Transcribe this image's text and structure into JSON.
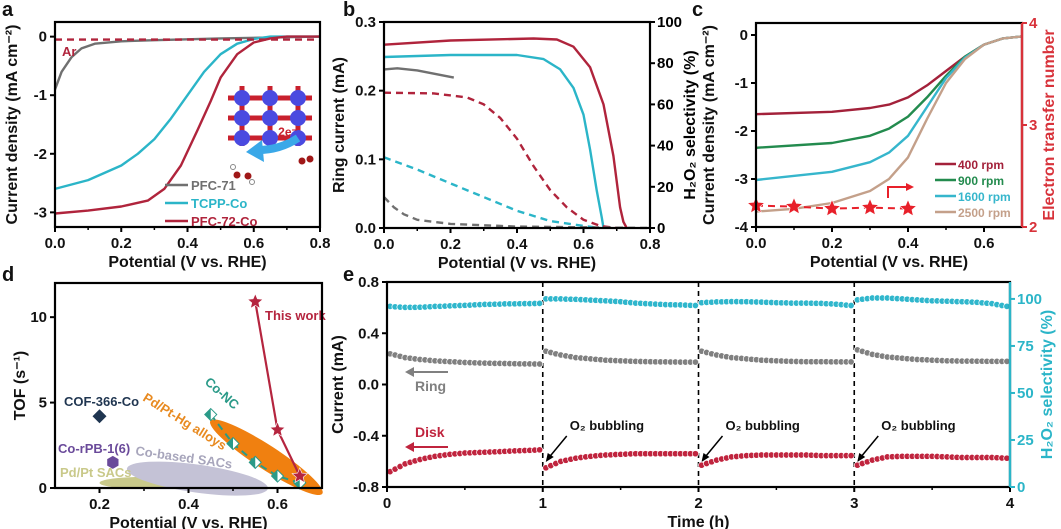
{
  "panel_letters": [
    "a",
    "b",
    "c",
    "d",
    "e"
  ],
  "chart_data": [
    {
      "panel": "a",
      "type": "line",
      "xlabel": "Potential (V vs. RHE)",
      "ylabel": "Current density (mA cm⁻²)",
      "xlim": [
        0,
        0.8
      ],
      "ylim": [
        -3.25,
        0.25
      ],
      "xticks": [
        "0.0",
        "0.2",
        "0.4",
        "0.6",
        "0.8"
      ],
      "yticks": [
        "0",
        "-1",
        "-2",
        "-3"
      ],
      "annotations": {
        "ar": "Ar",
        "inset_electrons": "2e⁻"
      },
      "series": [
        {
          "name": "PFC-71",
          "color": "#707070",
          "dash": false,
          "points": [
            [
              0,
              -0.9
            ],
            [
              0.02,
              -0.6
            ],
            [
              0.05,
              -0.35
            ],
            [
              0.08,
              -0.2
            ],
            [
              0.12,
              -0.12
            ],
            [
              0.2,
              -0.08
            ],
            [
              0.3,
              -0.06
            ],
            [
              0.5,
              -0.03
            ],
            [
              0.8,
              0
            ]
          ]
        },
        {
          "name": "TCPP-Co",
          "color": "#2bb5c8",
          "dash": false,
          "points": [
            [
              0,
              -2.6
            ],
            [
              0.1,
              -2.45
            ],
            [
              0.2,
              -2.2
            ],
            [
              0.25,
              -2.0
            ],
            [
              0.3,
              -1.75
            ],
            [
              0.35,
              -1.4
            ],
            [
              0.4,
              -1.0
            ],
            [
              0.45,
              -0.6
            ],
            [
              0.5,
              -0.3
            ],
            [
              0.55,
              -0.12
            ],
            [
              0.6,
              -0.04
            ],
            [
              0.65,
              0
            ],
            [
              0.8,
              0
            ]
          ]
        },
        {
          "name": "PFC-72-Co",
          "color": "#b0243c",
          "dash": false,
          "points": [
            [
              0,
              -3.02
            ],
            [
              0.1,
              -2.97
            ],
            [
              0.2,
              -2.9
            ],
            [
              0.28,
              -2.8
            ],
            [
              0.33,
              -2.6
            ],
            [
              0.38,
              -2.2
            ],
            [
              0.43,
              -1.6
            ],
            [
              0.47,
              -1.1
            ],
            [
              0.5,
              -0.7
            ],
            [
              0.55,
              -0.3
            ],
            [
              0.6,
              -0.1
            ],
            [
              0.65,
              -0.03
            ],
            [
              0.7,
              0
            ],
            [
              0.8,
              0
            ]
          ]
        },
        {
          "name": "Ar",
          "color": "#b0243c",
          "dash": true,
          "legend": false,
          "points": [
            [
              0,
              -0.05
            ],
            [
              0.8,
              -0.05
            ]
          ]
        }
      ]
    },
    {
      "panel": "b",
      "type": "line",
      "xlabel": "Potential (V vs. RHE)",
      "ylabel": "Ring current (mA)",
      "y2label": "H₂O₂ selectivity (%)",
      "xlim": [
        0,
        0.8
      ],
      "ylim": [
        0,
        0.3
      ],
      "y2lim": [
        0,
        100
      ],
      "xticks": [
        "0.0",
        "0.2",
        "0.4",
        "0.6",
        "0.8"
      ],
      "yticks": [
        "0.0",
        "0.1",
        "0.2",
        "0.3"
      ],
      "y2ticks": [
        "0",
        "20",
        "40",
        "60",
        "80",
        "100"
      ],
      "series": [
        {
          "color": "#b0243c",
          "axis": "right",
          "dash": false,
          "points": [
            [
              0,
              89
            ],
            [
              0.2,
              91
            ],
            [
              0.45,
              92
            ],
            [
              0.52,
              91.5
            ],
            [
              0.57,
              88
            ],
            [
              0.62,
              78
            ],
            [
              0.66,
              60
            ],
            [
              0.69,
              35
            ],
            [
              0.71,
              10
            ],
            [
              0.72,
              3
            ],
            [
              0.73,
              0
            ]
          ]
        },
        {
          "color": "#2bb5c8",
          "axis": "right",
          "dash": false,
          "points": [
            [
              0,
              83
            ],
            [
              0.2,
              84
            ],
            [
              0.4,
              84
            ],
            [
              0.48,
              82
            ],
            [
              0.53,
              77
            ],
            [
              0.57,
              68
            ],
            [
              0.6,
              55
            ],
            [
              0.62,
              38
            ],
            [
              0.64,
              18
            ],
            [
              0.655,
              5
            ],
            [
              0.66,
              0
            ]
          ]
        },
        {
          "color": "#707070",
          "axis": "right",
          "dash": false,
          "points": [
            [
              0,
              77
            ],
            [
              0.04,
              77.5
            ],
            [
              0.1,
              76.5
            ],
            [
              0.21,
              73
            ]
          ]
        },
        {
          "color": "#b0243c",
          "axis": "left",
          "dash": true,
          "points": [
            [
              0,
              0.197
            ],
            [
              0.15,
              0.196
            ],
            [
              0.25,
              0.19
            ],
            [
              0.3,
              0.18
            ],
            [
              0.35,
              0.16
            ],
            [
              0.4,
              0.13
            ],
            [
              0.45,
              0.09
            ],
            [
              0.5,
              0.055
            ],
            [
              0.55,
              0.03
            ],
            [
              0.6,
              0.012
            ],
            [
              0.65,
              0.003
            ],
            [
              0.7,
              0
            ]
          ]
        },
        {
          "color": "#2bb5c8",
          "axis": "left",
          "dash": true,
          "points": [
            [
              0,
              0.103
            ],
            [
              0.1,
              0.085
            ],
            [
              0.2,
              0.065
            ],
            [
              0.3,
              0.045
            ],
            [
              0.4,
              0.025
            ],
            [
              0.5,
              0.01
            ],
            [
              0.6,
              0.003
            ],
            [
              0.65,
              0
            ]
          ]
        },
        {
          "color": "#707070",
          "axis": "left",
          "dash": true,
          "points": [
            [
              0,
              0.045
            ],
            [
              0.03,
              0.03
            ],
            [
              0.06,
              0.02
            ],
            [
              0.1,
              0.012
            ],
            [
              0.2,
              0.006
            ],
            [
              0.4,
              0.002
            ],
            [
              0.8,
              0
            ]
          ]
        }
      ]
    },
    {
      "panel": "c",
      "type": "line",
      "xlabel": "Potential (V vs. RHE)",
      "ylabel": "Current density (mA cm⁻²)",
      "y2label": "Electron transfer number",
      "xlim": [
        0,
        0.7
      ],
      "ylim": [
        -4,
        0.25
      ],
      "y2lim": [
        2,
        4
      ],
      "xticks": [
        "0.0",
        "0.2",
        "0.4",
        "0.6"
      ],
      "yticks": [
        "0",
        "-1",
        "-2",
        "-3",
        "-4"
      ],
      "y2ticks": [
        "2",
        "3",
        "4"
      ],
      "y2color": "#d8323a",
      "series": [
        {
          "name": "400 rpm",
          "color": "#a3213a",
          "points": [
            [
              0,
              -1.65
            ],
            [
              0.2,
              -1.6
            ],
            [
              0.3,
              -1.52
            ],
            [
              0.35,
              -1.45
            ],
            [
              0.4,
              -1.3
            ],
            [
              0.45,
              -1.05
            ],
            [
              0.5,
              -0.75
            ],
            [
              0.55,
              -0.45
            ],
            [
              0.6,
              -0.2
            ],
            [
              0.65,
              -0.07
            ],
            [
              0.7,
              -0.03
            ]
          ]
        },
        {
          "name": "900 rpm",
          "color": "#238b4e",
          "points": [
            [
              0,
              -2.35
            ],
            [
              0.2,
              -2.25
            ],
            [
              0.3,
              -2.1
            ],
            [
              0.35,
              -1.95
            ],
            [
              0.4,
              -1.7
            ],
            [
              0.45,
              -1.3
            ],
            [
              0.5,
              -0.85
            ],
            [
              0.55,
              -0.45
            ],
            [
              0.6,
              -0.2
            ],
            [
              0.65,
              -0.07
            ],
            [
              0.7,
              -0.03
            ]
          ]
        },
        {
          "name": "1600 rpm",
          "color": "#36b6cc",
          "points": [
            [
              0,
              -3.02
            ],
            [
              0.2,
              -2.85
            ],
            [
              0.3,
              -2.65
            ],
            [
              0.35,
              -2.45
            ],
            [
              0.4,
              -2.1
            ],
            [
              0.45,
              -1.5
            ],
            [
              0.5,
              -0.9
            ],
            [
              0.55,
              -0.47
            ],
            [
              0.6,
              -0.2
            ],
            [
              0.65,
              -0.07
            ],
            [
              0.7,
              -0.03
            ]
          ]
        },
        {
          "name": "2500 rpm",
          "color": "#c4a08a",
          "points": [
            [
              0,
              -3.68
            ],
            [
              0.1,
              -3.62
            ],
            [
              0.2,
              -3.5
            ],
            [
              0.3,
              -3.25
            ],
            [
              0.35,
              -3.0
            ],
            [
              0.4,
              -2.55
            ],
            [
              0.45,
              -1.75
            ],
            [
              0.5,
              -1.0
            ],
            [
              0.55,
              -0.5
            ],
            [
              0.6,
              -0.2
            ],
            [
              0.65,
              -0.07
            ],
            [
              0.7,
              -0.03
            ]
          ]
        }
      ],
      "electron_transfer": {
        "color": "#e8202a",
        "points": [
          [
            0,
            2.21
          ],
          [
            0.1,
            2.2
          ],
          [
            0.2,
            2.18
          ],
          [
            0.3,
            2.19
          ],
          [
            0.4,
            2.18
          ]
        ]
      }
    },
    {
      "panel": "d",
      "type": "scatter",
      "xlabel": "Potential (V vs. RHE)",
      "ylabel": "TOF (s⁻¹)",
      "xlim": [
        0.1,
        0.7
      ],
      "ylim": [
        0,
        12
      ],
      "xticks": [
        "0.2",
        "0.4",
        "0.6"
      ],
      "xtick_values": [
        0.2,
        0.4,
        0.6
      ],
      "yticks": [
        "0",
        "5",
        "10"
      ],
      "ytick_values": [
        0,
        5,
        10
      ],
      "points": [
        {
          "label": "COF-366-Co",
          "color": "#1f3550",
          "marker": "diamond",
          "x": 0.2,
          "y": 4.2
        },
        {
          "label": "Co-rPB-1(6)",
          "color": "#6a4a9a",
          "marker": "hexagon",
          "x": 0.23,
          "y": 1.5
        }
      ],
      "regions": [
        {
          "label": "Pd/Pt SACs",
          "color": "#c9c98a"
        },
        {
          "label": "Co-based SACs",
          "color": "#c4c2d6"
        },
        {
          "label": "Pd/Pt-Hg alloys",
          "color": "#f08010"
        }
      ],
      "series": [
        {
          "label": "Co-NC",
          "color": "#2a9a88",
          "marker": "half-diamond",
          "points": [
            [
              0.45,
              4.3
            ],
            [
              0.5,
              2.6
            ],
            [
              0.55,
              1.5
            ],
            [
              0.6,
              0.7
            ],
            [
              0.65,
              0.3
            ]
          ]
        },
        {
          "label": "This work",
          "color": "#b5253f",
          "marker": "star",
          "points": [
            [
              0.55,
              10.9
            ],
            [
              0.6,
              3.4
            ],
            [
              0.65,
              0.7
            ]
          ]
        }
      ]
    },
    {
      "panel": "e",
      "type": "scatter",
      "xlabel": "Time (h)",
      "ylabel": "Current (mA)",
      "y2label": "H₂O₂ selectivity (%)",
      "xlim": [
        0,
        4
      ],
      "ylim": [
        -0.8,
        0.8
      ],
      "y2lim": [
        0,
        109
      ],
      "xticks": [
        "0",
        "1",
        "2",
        "3",
        "4"
      ],
      "yticks": [
        "0.8",
        "0.4",
        "0.0",
        "-0.4",
        "-0.8"
      ],
      "y2ticks": [
        "0",
        "25",
        "50",
        "75",
        "100"
      ],
      "y2color": "#2bb5c8",
      "annotations": {
        "ring": "Ring",
        "disk": "Disk",
        "bubbling": "O₂ bubbling"
      },
      "bubbling_times": [
        1,
        2,
        3
      ],
      "series": [
        {
          "name": "H2O2 selectivity",
          "axis": "right",
          "color": "#2fb6cc",
          "segments": [
            [
              96,
              95.5,
              95.6,
              96,
              96.3,
              96.6,
              97,
              97.2,
              97.4,
              97.5,
              97.6
            ],
            [
              100,
              100,
              99.8,
              99.4,
              99,
              98.5,
              97.8,
              97.4,
              97,
              96.8,
              96.5
            ],
            [
              98,
              98.4,
              98.6,
              98.5,
              98.3,
              98,
              97.8,
              97.8,
              97.6,
              97.2,
              96.5
            ],
            [
              99.5,
              100.5,
              100.5,
              100,
              99.5,
              99,
              98.8,
              98.5,
              98.2,
              97.5,
              96
            ]
          ]
        },
        {
          "name": "Ring",
          "axis": "left",
          "color": "#808080",
          "segments": [
            [
              0.24,
              0.21,
              0.195,
              0.185,
              0.178,
              0.172,
              0.168,
              0.165,
              0.163,
              0.161,
              0.16
            ],
            [
              0.26,
              0.23,
              0.21,
              0.2,
              0.19,
              0.185,
              0.18,
              0.178,
              0.176,
              0.175,
              0.175
            ],
            [
              0.26,
              0.23,
              0.21,
              0.2,
              0.19,
              0.185,
              0.18,
              0.178,
              0.178,
              0.177,
              0.176
            ],
            [
              0.27,
              0.235,
              0.215,
              0.205,
              0.195,
              0.19,
              0.185,
              0.183,
              0.182,
              0.181,
              0.18
            ]
          ]
        },
        {
          "name": "Disk",
          "axis": "left",
          "color": "#c0243e",
          "segments": [
            [
              -0.68,
              -0.62,
              -0.585,
              -0.56,
              -0.545,
              -0.535,
              -0.53,
              -0.525,
              -0.52,
              -0.515,
              -0.51
            ],
            [
              -0.65,
              -0.6,
              -0.575,
              -0.56,
              -0.55,
              -0.545,
              -0.54,
              -0.54,
              -0.54,
              -0.54,
              -0.54
            ],
            [
              -0.63,
              -0.59,
              -0.565,
              -0.555,
              -0.55,
              -0.55,
              -0.55,
              -0.55,
              -0.555,
              -0.555,
              -0.555
            ],
            [
              -0.63,
              -0.59,
              -0.565,
              -0.56,
              -0.56,
              -0.56,
              -0.565,
              -0.57,
              -0.57,
              -0.57,
              -0.575
            ]
          ]
        }
      ]
    }
  ]
}
